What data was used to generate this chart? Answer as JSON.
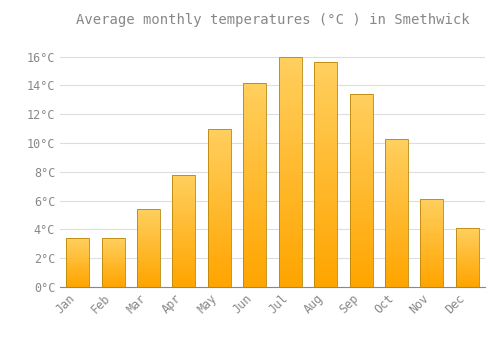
{
  "title": "Average monthly temperatures (°C ) in Smethwick",
  "months": [
    "Jan",
    "Feb",
    "Mar",
    "Apr",
    "May",
    "Jun",
    "Jul",
    "Aug",
    "Sep",
    "Oct",
    "Nov",
    "Dec"
  ],
  "values": [
    3.4,
    3.4,
    5.4,
    7.8,
    11.0,
    14.2,
    16.0,
    15.6,
    13.4,
    10.3,
    6.1,
    4.1
  ],
  "bar_color_main": "#FFA500",
  "bar_color_light": "#FFD060",
  "bar_edge_color": "#B8860B",
  "background_color": "#FFFFFF",
  "grid_color": "#DDDDDD",
  "text_color": "#888888",
  "ylim": [
    0,
    17.5
  ],
  "yticks": [
    0,
    2,
    4,
    6,
    8,
    10,
    12,
    14,
    16
  ],
  "title_fontsize": 10,
  "tick_fontsize": 8.5
}
